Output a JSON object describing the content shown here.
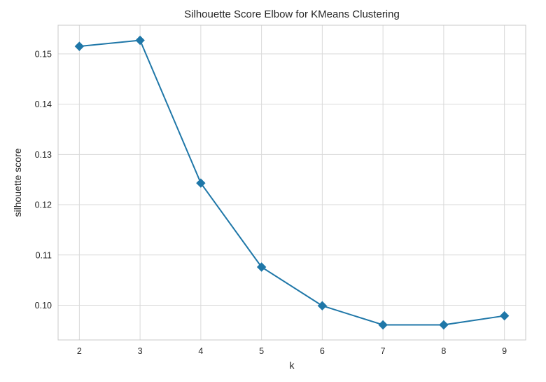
{
  "colors": {
    "line": "#1f77a8",
    "grid": "#d9d9d9",
    "frame": "#c8c8c8",
    "text": "#262626"
  },
  "chart_data": {
    "type": "line",
    "title": "Silhouette Score Elbow for KMeans Clustering",
    "xlabel": "k",
    "ylabel": "silhouette score",
    "x": [
      2,
      3,
      4,
      5,
      6,
      7,
      8,
      9
    ],
    "series": [
      {
        "values": [
          0.1515,
          0.1527,
          0.1243,
          0.1076,
          0.0999,
          0.0961,
          0.0961,
          0.0979
        ],
        "marker": "diamond"
      }
    ],
    "xlim": [
      1.65,
      9.35
    ],
    "ylim": [
      0.0931,
      0.1557
    ],
    "xticks": [
      "2",
      "3",
      "4",
      "5",
      "6",
      "7",
      "8",
      "9"
    ],
    "yticks": [
      "0.10",
      "0.11",
      "0.12",
      "0.13",
      "0.14",
      "0.15"
    ],
    "grid": true
  }
}
